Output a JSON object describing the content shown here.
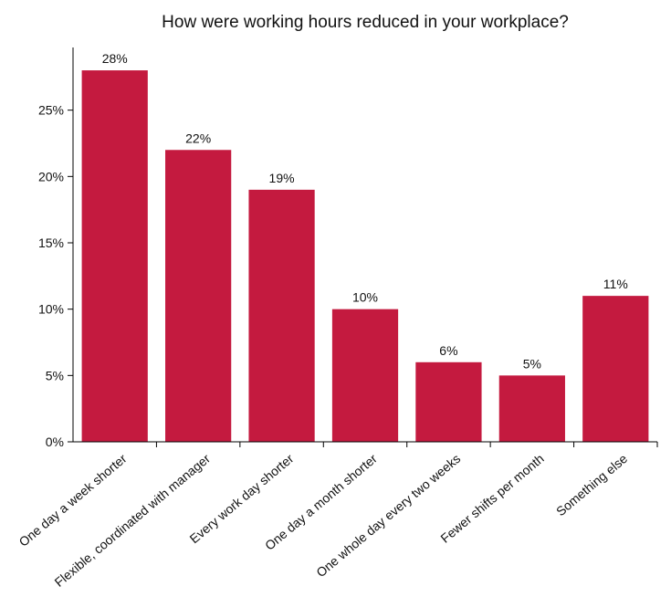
{
  "chart_data": {
    "type": "bar",
    "title": "How were working hours reduced in your workplace?",
    "xlabel": "",
    "ylabel": "",
    "categories": [
      "One day a week shorter",
      "Flexible, coordinated with manager",
      "Every work day shorter",
      "One day a month shorter",
      "One whole day every two weeks",
      "Fewer shifts per month",
      "Something else"
    ],
    "values": [
      28,
      22,
      19,
      10,
      6,
      5,
      11
    ],
    "data_labels": [
      "28%",
      "22%",
      "19%",
      "10%",
      "6%",
      "5%",
      "11%"
    ],
    "ylim": [
      0,
      30
    ],
    "yticks": [
      0,
      5,
      10,
      15,
      20,
      25
    ],
    "ytick_labels": [
      "0%",
      "5%",
      "10%",
      "15%",
      "20%",
      "25%"
    ],
    "bar_color": "#c41a3f",
    "grid": false,
    "legend": "none"
  }
}
